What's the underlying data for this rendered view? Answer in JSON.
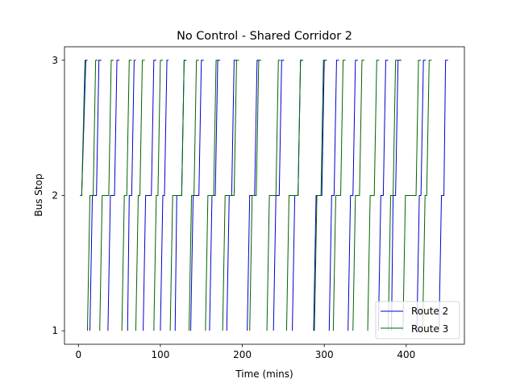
{
  "chart_data": {
    "type": "line",
    "title": "No Control - Shared Corridor 2",
    "xlabel": "Time (mins)",
    "ylabel": "Bus Stop",
    "xlim": [
      -17,
      471
    ],
    "ylim": [
      0.9,
      3.1
    ],
    "xticks": [
      0,
      100,
      200,
      300,
      400
    ],
    "xtick_labels": [
      "0",
      "100",
      "200",
      "300",
      "400"
    ],
    "yticks": [
      1,
      2,
      3
    ],
    "ytick_labels": [
      "1",
      "2",
      "3"
    ],
    "grid": false,
    "legend_position": "lower-right",
    "series": [
      {
        "name": "Route 2",
        "color": "#0000cc",
        "trips": [
          [
            [
              2,
              2
            ],
            [
              4,
              2
            ],
            [
              9,
              3
            ],
            [
              11,
              3
            ]
          ],
          [
            [
              14,
              1
            ],
            [
              17,
              2
            ],
            [
              22,
              2
            ],
            [
              25,
              3
            ],
            [
              28,
              3
            ]
          ],
          [
            [
              36,
              1
            ],
            [
              39,
              2
            ],
            [
              44,
              2
            ],
            [
              47,
              3
            ],
            [
              50,
              3
            ]
          ],
          [
            [
              60,
              1
            ],
            [
              62,
              2
            ],
            [
              65,
              2
            ],
            [
              68,
              3
            ],
            [
              70,
              3
            ]
          ],
          [
            [
              79,
              1
            ],
            [
              82,
              2
            ],
            [
              89,
              2
            ],
            [
              92,
              3
            ],
            [
              95,
              3
            ]
          ],
          [
            [
              100,
              1
            ],
            [
              103,
              2
            ],
            [
              105,
              2
            ],
            [
              108,
              3
            ],
            [
              110,
              3
            ]
          ],
          [
            [
              118,
              1
            ],
            [
              120,
              2
            ],
            [
              126,
              2
            ],
            [
              129,
              3
            ],
            [
              131,
              3
            ]
          ],
          [
            [
              137,
              1
            ],
            [
              140,
              2
            ],
            [
              147,
              2
            ],
            [
              150,
              3
            ],
            [
              153,
              3
            ]
          ],
          [
            [
              160,
              1
            ],
            [
              163,
              2
            ],
            [
              167,
              2
            ],
            [
              170,
              3
            ],
            [
              173,
              3
            ]
          ],
          [
            [
              181,
              1
            ],
            [
              184,
              2
            ],
            [
              187,
              2
            ],
            [
              190,
              3
            ],
            [
              193,
              3
            ]
          ],
          [
            [
              206,
              1
            ],
            [
              209,
              2
            ],
            [
              215,
              2
            ],
            [
              218,
              3
            ],
            [
              221,
              3
            ]
          ],
          [
            [
              238,
              1
            ],
            [
              241,
              2
            ],
            [
              245,
              2
            ],
            [
              248,
              3
            ],
            [
              251,
              3
            ]
          ],
          [
            [
              261,
              1
            ],
            [
              264,
              2
            ],
            [
              268,
              2
            ],
            [
              271,
              3
            ],
            [
              274,
              3
            ]
          ],
          [
            [
              287,
              1
            ],
            [
              290,
              2
            ],
            [
              297,
              2
            ],
            [
              300,
              3
            ],
            [
              303,
              3
            ]
          ],
          [
            [
              306,
              1
            ],
            [
              309,
              2
            ],
            [
              312,
              2
            ],
            [
              315,
              3
            ],
            [
              318,
              3
            ]
          ],
          [
            [
              329,
              1
            ],
            [
              332,
              2
            ],
            [
              335,
              2
            ],
            [
              338,
              3
            ],
            [
              341,
              3
            ]
          ],
          [
            [
              366,
              1
            ],
            [
              369,
              2
            ],
            [
              372,
              2
            ],
            [
              375,
              3
            ],
            [
              378,
              3
            ]
          ],
          [
            [
              382,
              1
            ],
            [
              384,
              2
            ],
            [
              387,
              2
            ],
            [
              390,
              3
            ],
            [
              394,
              3
            ]
          ],
          [
            [
              413,
              1
            ],
            [
              416,
              2
            ],
            [
              418,
              2
            ],
            [
              421,
              3
            ],
            [
              424,
              3
            ]
          ],
          [
            [
              440,
              1
            ],
            [
              443,
              2
            ],
            [
              446,
              2
            ],
            [
              448,
              3
            ],
            [
              451,
              3
            ]
          ]
        ]
      },
      {
        "name": "Route 3",
        "color": "#006400",
        "trips": [
          [
            [
              4,
              2
            ],
            [
              8,
              3
            ],
            [
              10,
              3
            ]
          ],
          [
            [
              11,
              1
            ],
            [
              14,
              2
            ],
            [
              18,
              2
            ],
            [
              21,
              3
            ],
            [
              24,
              3
            ]
          ],
          [
            [
              26,
              1
            ],
            [
              29,
              2
            ],
            [
              37,
              2
            ],
            [
              40,
              3
            ],
            [
              43,
              3
            ]
          ],
          [
            [
              53,
              1
            ],
            [
              56,
              2
            ],
            [
              59,
              2
            ],
            [
              62,
              3
            ],
            [
              65,
              3
            ]
          ],
          [
            [
              70,
              1
            ],
            [
              73,
              2
            ],
            [
              75,
              2
            ],
            [
              78,
              3
            ],
            [
              81,
              3
            ]
          ],
          [
            [
              92,
              1
            ],
            [
              95,
              2
            ],
            [
              97,
              2
            ],
            [
              100,
              3
            ],
            [
              103,
              3
            ]
          ],
          [
            [
              112,
              1
            ],
            [
              115,
              2
            ],
            [
              126,
              2
            ],
            [
              129,
              3
            ],
            [
              132,
              3
            ]
          ],
          [
            [
              135,
              1
            ],
            [
              138,
              2
            ],
            [
              141,
              2
            ],
            [
              144,
              3
            ],
            [
              147,
              3
            ]
          ],
          [
            [
              155,
              1
            ],
            [
              158,
              2
            ],
            [
              165,
              2
            ],
            [
              168,
              3
            ],
            [
              171,
              3
            ]
          ],
          [
            [
              176,
              1
            ],
            [
              179,
              2
            ],
            [
              190,
              2
            ],
            [
              193,
              3
            ],
            [
              196,
              3
            ]
          ],
          [
            [
              209,
              1
            ],
            [
              212,
              2
            ],
            [
              217,
              2
            ],
            [
              220,
              3
            ],
            [
              223,
              3
            ]
          ],
          [
            [
              230,
              1
            ],
            [
              233,
              2
            ],
            [
              241,
              2
            ],
            [
              244,
              3
            ],
            [
              247,
              3
            ]
          ],
          [
            [
              254,
              1
            ],
            [
              257,
              2
            ],
            [
              268,
              2
            ],
            [
              271,
              3
            ],
            [
              274,
              3
            ]
          ],
          [
            [
              288,
              1
            ],
            [
              291,
              2
            ],
            [
              296,
              2
            ],
            [
              299,
              3
            ],
            [
              302,
              3
            ]
          ],
          [
            [
              311,
              1
            ],
            [
              314,
              2
            ],
            [
              320,
              2
            ],
            [
              323,
              3
            ],
            [
              326,
              3
            ]
          ],
          [
            [
              335,
              1
            ],
            [
              338,
              2
            ],
            [
              343,
              2
            ],
            [
              346,
              3
            ],
            [
              349,
              3
            ]
          ],
          [
            [
              353,
              1
            ],
            [
              356,
              2
            ],
            [
              361,
              2
            ],
            [
              364,
              3
            ],
            [
              367,
              3
            ]
          ],
          [
            [
              378,
              1
            ],
            [
              381,
              2
            ],
            [
              384,
              2
            ],
            [
              387,
              3
            ],
            [
              390,
              3
            ]
          ],
          [
            [
              396,
              1
            ],
            [
              399,
              2
            ],
            [
              412,
              2
            ],
            [
              415,
              3
            ],
            [
              418,
              3
            ]
          ],
          [
            [
              420,
              1
            ],
            [
              423,
              2
            ],
            [
              425,
              2
            ],
            [
              428,
              3
            ],
            [
              431,
              3
            ]
          ]
        ]
      }
    ]
  }
}
